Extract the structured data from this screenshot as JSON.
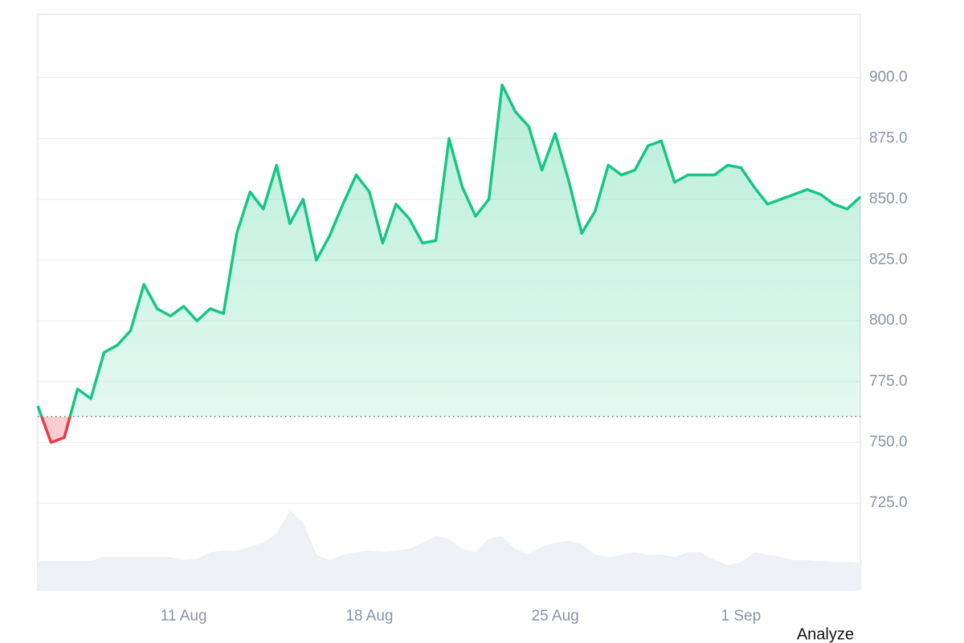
{
  "chart_data": {
    "type": "line",
    "categories": [
      null,
      null,
      null,
      null,
      null,
      null,
      null,
      null,
      null,
      null,
      null,
      "11 Aug",
      null,
      null,
      null,
      null,
      null,
      null,
      null,
      null,
      null,
      null,
      null,
      null,
      null,
      "18 Aug",
      null,
      null,
      null,
      null,
      null,
      null,
      null,
      null,
      null,
      null,
      null,
      null,
      null,
      "25 Aug",
      null,
      null,
      null,
      null,
      null,
      null,
      null,
      null,
      null,
      null,
      null,
      null,
      null,
      "1 Sep",
      null,
      null,
      null,
      null,
      null,
      null,
      null,
      null,
      null
    ],
    "values": [
      765,
      750,
      752,
      772,
      768,
      787,
      790,
      796,
      815,
      805,
      802,
      806,
      800,
      805,
      803,
      836,
      853,
      846,
      864,
      840,
      850,
      825,
      835,
      848,
      860,
      853,
      832,
      848,
      842,
      832,
      833,
      875,
      855,
      843,
      850,
      897,
      886,
      880,
      862,
      877,
      858,
      836,
      845,
      864,
      860,
      862,
      872,
      874,
      857,
      860,
      860,
      860,
      864,
      863,
      855,
      848,
      850,
      852,
      854,
      852,
      848,
      846,
      851
    ],
    "color": "#16c784",
    "down_color": "#ea3943",
    "baseline": 760.6,
    "ylim": [
      689,
      926
    ],
    "yticks": [
      {
        "value": 725,
        "label": "725.0"
      },
      {
        "value": 750,
        "label": "750.0"
      },
      {
        "value": 775,
        "label": "775.0"
      },
      {
        "value": 800,
        "label": "800.0"
      },
      {
        "value": 825,
        "label": "825.0"
      },
      {
        "value": 850,
        "label": "850.0"
      },
      {
        "value": 875,
        "label": "875.0"
      },
      {
        "value": 900,
        "label": "900.0"
      }
    ],
    "grid": true,
    "volume": {
      "color": "#eef1f5",
      "ylim": [
        0,
        717
      ],
      "values": [
        37,
        37,
        37,
        37,
        37,
        42,
        42,
        42,
        42,
        42,
        42,
        38,
        40,
        48,
        50,
        50,
        55,
        60,
        72,
        100,
        85,
        45,
        38,
        45,
        48,
        50,
        48,
        50,
        52,
        60,
        68,
        65,
        52,
        48,
        65,
        68,
        52,
        45,
        55,
        60,
        62,
        58,
        45,
        42,
        45,
        48,
        45,
        45,
        42,
        48,
        48,
        38,
        32,
        35,
        48,
        45,
        42,
        38,
        38,
        37,
        36,
        36,
        35
      ]
    },
    "button_label": "Analyze"
  }
}
